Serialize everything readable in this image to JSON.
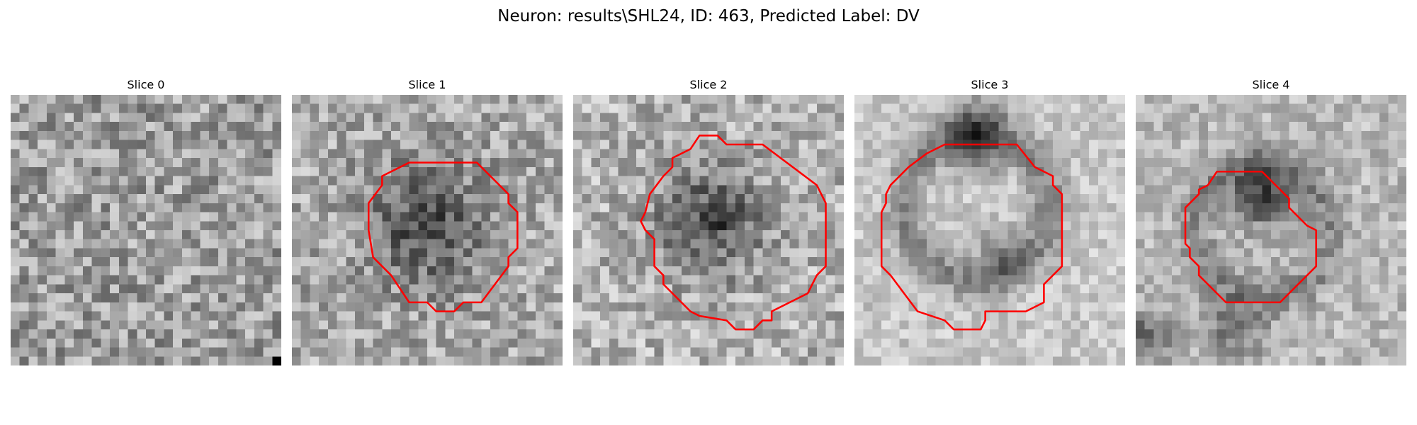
{
  "figure": {
    "title": "Neuron: results\\SHL24, ID: 463, Predicted Label: DV"
  },
  "panels": [
    {
      "title": "Slice 0",
      "has_contour": false
    },
    {
      "title": "Slice 1",
      "has_contour": true
    },
    {
      "title": "Slice 2",
      "has_contour": true
    },
    {
      "title": "Slice 3",
      "has_contour": true
    },
    {
      "title": "Slice 4",
      "has_contour": true
    }
  ],
  "colors": {
    "contour": "#ff0000",
    "background": "#ffffff"
  },
  "image": {
    "colormap": "grayscale"
  }
}
